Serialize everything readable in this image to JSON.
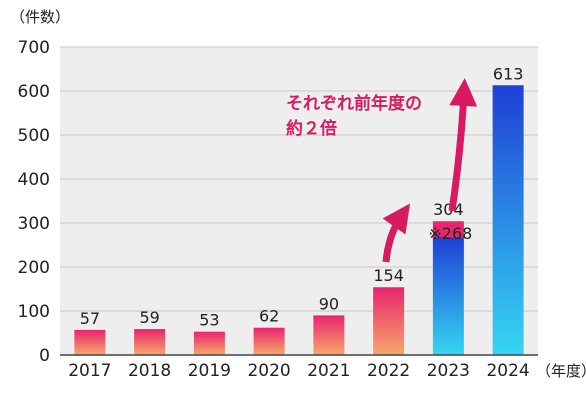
{
  "chart_data": {
    "type": "bar",
    "y_unit_label": "（件数）",
    "x_unit_label": "（年度）",
    "categories": [
      "2017",
      "2018",
      "2019",
      "2020",
      "2021",
      "2022",
      "2023",
      "2024"
    ],
    "values": [
      57,
      59,
      53,
      62,
      90,
      154,
      304,
      613
    ],
    "value_labels": [
      "57",
      "59",
      "53",
      "62",
      "90",
      "154",
      "304",
      "613"
    ],
    "ylim": [
      0,
      700
    ],
    "yticks": [
      "0",
      "100",
      "200",
      "300",
      "400",
      "500",
      "600",
      "700"
    ],
    "grid": true,
    "bar_2023_inner": {
      "value": 268,
      "label": "※268"
    },
    "annotation": {
      "line1": "それぞれ前年度の",
      "line2": "約２倍"
    },
    "colors": {
      "warm_top": "#e8256e",
      "warm_bottom": "#f7a86a",
      "blue_top": "#1f3fd6",
      "blue_bottom": "#35d6f2",
      "arrow": "#d81b60",
      "plot_bg": "#eeeeee"
    }
  }
}
